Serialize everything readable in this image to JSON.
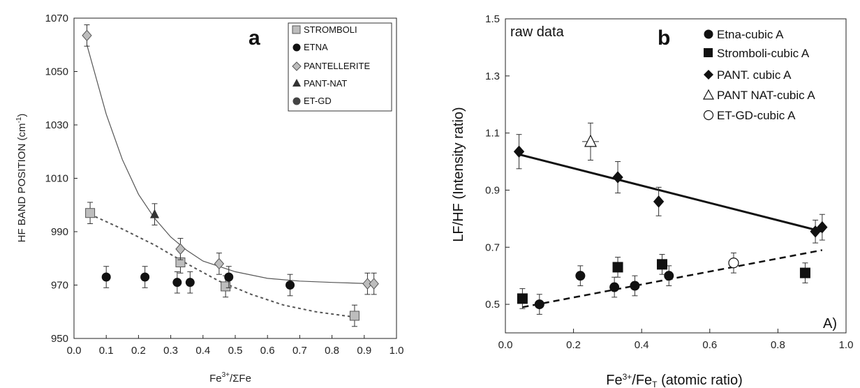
{
  "chart_data": [
    {
      "panel": "a",
      "type": "scatter",
      "xlabel": "Fe³⁺/ΣFe",
      "ylabel": "HF BAND POSITION (cm⁻¹)",
      "xlim": [
        0.0,
        1.0
      ],
      "ylim": [
        950,
        1070
      ],
      "x_ticks": [
        "0.0",
        "0.1",
        "0.2",
        "0.3",
        "0.4",
        "0.5",
        "0.6",
        "0.7",
        "0.8",
        "0.9",
        "1.0"
      ],
      "y_ticks": [
        "950",
        "970",
        "990",
        "1010",
        "1030",
        "1050",
        "1070"
      ],
      "legend_position": "top-right",
      "series": [
        {
          "name": "STROMBOLI",
          "marker": "square",
          "color": "#bdbdbd",
          "x": [
            0.05,
            0.33,
            0.47,
            0.87
          ],
          "y": [
            997,
            978.5,
            969.5,
            958.5
          ],
          "err": [
            4,
            4,
            4,
            4
          ]
        },
        {
          "name": "ETNA",
          "marker": "circle",
          "color": "#111111",
          "x": [
            0.1,
            0.22,
            0.32,
            0.36,
            0.48,
            0.67
          ],
          "y": [
            973,
            973,
            971,
            971,
            973,
            970
          ],
          "err": [
            4,
            4,
            4,
            4,
            4,
            4
          ]
        },
        {
          "name": "PANTELLERITE",
          "marker": "diamond",
          "color": "#bdbdbd",
          "x": [
            0.04,
            0.33,
            0.45,
            0.91,
            0.93
          ],
          "y": [
            1063.5,
            983.5,
            978,
            970.5,
            970.5
          ],
          "err": [
            4,
            4,
            4,
            4,
            4
          ]
        },
        {
          "name": "PANT-NAT",
          "marker": "triangle",
          "color": "#333333",
          "x": [
            0.25
          ],
          "y": [
            996.5
          ],
          "err": [
            4
          ]
        },
        {
          "name": "ET-GD",
          "marker": "circle",
          "color": "#444444",
          "x": [],
          "y": [],
          "err": []
        }
      ],
      "fits": [
        {
          "series": "PANTELLERITE",
          "style": "solid",
          "x": [
            0.04,
            0.1,
            0.15,
            0.2,
            0.25,
            0.3,
            0.35,
            0.4,
            0.5,
            0.6,
            0.7,
            0.8,
            0.93
          ],
          "y": [
            1060,
            1034,
            1017,
            1004,
            995,
            988,
            983,
            979,
            975,
            972.5,
            971.5,
            971,
            970.5
          ]
        },
        {
          "series": "STROMBOLI",
          "style": "dashed",
          "x": [
            0.05,
            0.15,
            0.25,
            0.35,
            0.45,
            0.55,
            0.65,
            0.75,
            0.87
          ],
          "y": [
            996.5,
            991,
            985,
            978,
            971.5,
            966.5,
            962.5,
            960,
            958
          ]
        }
      ]
    },
    {
      "panel": "b",
      "type": "scatter",
      "xlabel": "Fe³⁺/Fe_T (atomic ratio)",
      "ylabel": "LF/HF (Intensity ratio)",
      "xlim": [
        0.0,
        1.0
      ],
      "ylim": [
        0.4,
        1.5
      ],
      "x_ticks": [
        "0.0",
        "0.2",
        "0.4",
        "0.6",
        "0.8",
        "1.0"
      ],
      "y_ticks": [
        "0.5",
        "0.7",
        "0.9",
        "1.1",
        "1.3",
        "1.5"
      ],
      "legend_position": "top-right",
      "series": [
        {
          "name": "Etna-cubic A",
          "marker": "circle",
          "color": "#111111",
          "x": [
            0.1,
            0.22,
            0.32,
            0.38,
            0.48
          ],
          "y": [
            0.5,
            0.6,
            0.56,
            0.565,
            0.6
          ],
          "err": [
            0.035,
            0.035,
            0.035,
            0.035,
            0.035
          ]
        },
        {
          "name": "Stromboli-cubic A",
          "marker": "square",
          "color": "#111111",
          "x": [
            0.05,
            0.33,
            0.46,
            0.88
          ],
          "y": [
            0.52,
            0.63,
            0.64,
            0.61
          ],
          "err": [
            0.035,
            0.035,
            0.035,
            0.035
          ]
        },
        {
          "name": "PANT. cubic A",
          "marker": "diamond",
          "color": "#111111",
          "x": [
            0.04,
            0.33,
            0.45,
            0.91,
            0.93
          ],
          "y": [
            1.035,
            0.945,
            0.86,
            0.755,
            0.77
          ],
          "err": [
            0.06,
            0.055,
            0.05,
            0.04,
            0.045
          ]
        },
        {
          "name": "PANT NAT-cubic A",
          "marker": "triangle-open",
          "color": "#111111",
          "x": [
            0.25
          ],
          "y": [
            1.07
          ],
          "err": [
            0.065
          ]
        },
        {
          "name": "ET-GD-cubic A",
          "marker": "circle-open",
          "color": "#111111",
          "x": [
            0.67
          ],
          "y": [
            0.645
          ],
          "err": [
            0.035
          ]
        }
      ],
      "fits": [
        {
          "style": "solid",
          "x": [
            0.04,
            0.93
          ],
          "y": [
            1.025,
            0.755
          ]
        },
        {
          "style": "dashed",
          "x": [
            0.05,
            0.93
          ],
          "y": [
            0.49,
            0.69
          ]
        }
      ],
      "annotations": [
        "raw data",
        "A)"
      ]
    }
  ],
  "panel_a": {
    "letter": "a",
    "xlabel_main": "Fe",
    "xlabel_sup": "3+",
    "xlabel_rest": "/ΣFe",
    "ylabel_main": "HF BAND POSITION (cm",
    "ylabel_sup": "-1",
    "ylabel_end": ")",
    "legend": [
      "STROMBOLI",
      "ETNA",
      "PANTELLERITE",
      "PANT-NAT",
      "ET-GD"
    ]
  },
  "panel_b": {
    "letter": "b",
    "note": "raw data",
    "corner_label": "A)",
    "xlabel_main": "Fe",
    "xlabel_sup": "3+",
    "xlabel_mid": "/Fe",
    "xlabel_sub": "T",
    "xlabel_rest": " (atomic ratio)",
    "ylabel": "LF/HF (Intensity ratio)",
    "legend": [
      "Etna-cubic A",
      "Stromboli-cubic A",
      "PANT. cubic A",
      "PANT NAT-cubic A",
      "ET-GD-cubic A"
    ]
  }
}
